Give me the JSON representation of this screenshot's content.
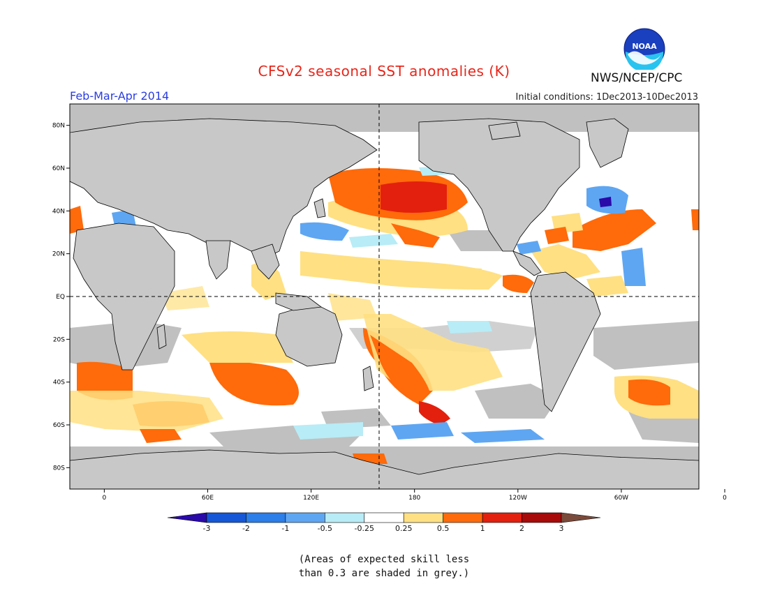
{
  "title": "CFSv2 seasonal SST anomalies (K)",
  "agency": "NWS/NCEP/CPC",
  "logo_text": "NOAA",
  "season": "Feb-Mar-Apr 2014",
  "initial_conditions": "Initial conditions: 1Dec2013-10Dec2013",
  "map": {
    "projection": "cylindrical equidistant",
    "lon_range": [
      -20,
      345
    ],
    "lat_range": [
      -90,
      90
    ],
    "lat_ticks": [
      "80N",
      "60N",
      "40N",
      "20N",
      "EQ",
      "20S",
      "40S",
      "60S",
      "80S"
    ],
    "lon_ticks": [
      "0",
      "60E",
      "120E",
      "180",
      "120W",
      "60W",
      "0"
    ],
    "reference_lines": [
      "equator",
      "dateline"
    ],
    "land_color": "#c8c8c8",
    "low_skill_color": "#c0c0c0"
  },
  "legend": {
    "labels": [
      "-3",
      "-2",
      "-1",
      "-0.5",
      "-0.25",
      "0.25",
      "0.5",
      "1",
      "2",
      "3"
    ],
    "colors": [
      "#2a0aa8",
      "#1557d6",
      "#2c7ee8",
      "#5ea6f2",
      "#b8ecf6",
      "#ffffff",
      "#ffe082",
      "#ff6a0a",
      "#e3200e",
      "#a80a0a",
      "#7a4a3a"
    ]
  },
  "note": {
    "line1": "(Areas of expected skill less",
    "line2": "than 0.3 are shaded in grey.)"
  }
}
